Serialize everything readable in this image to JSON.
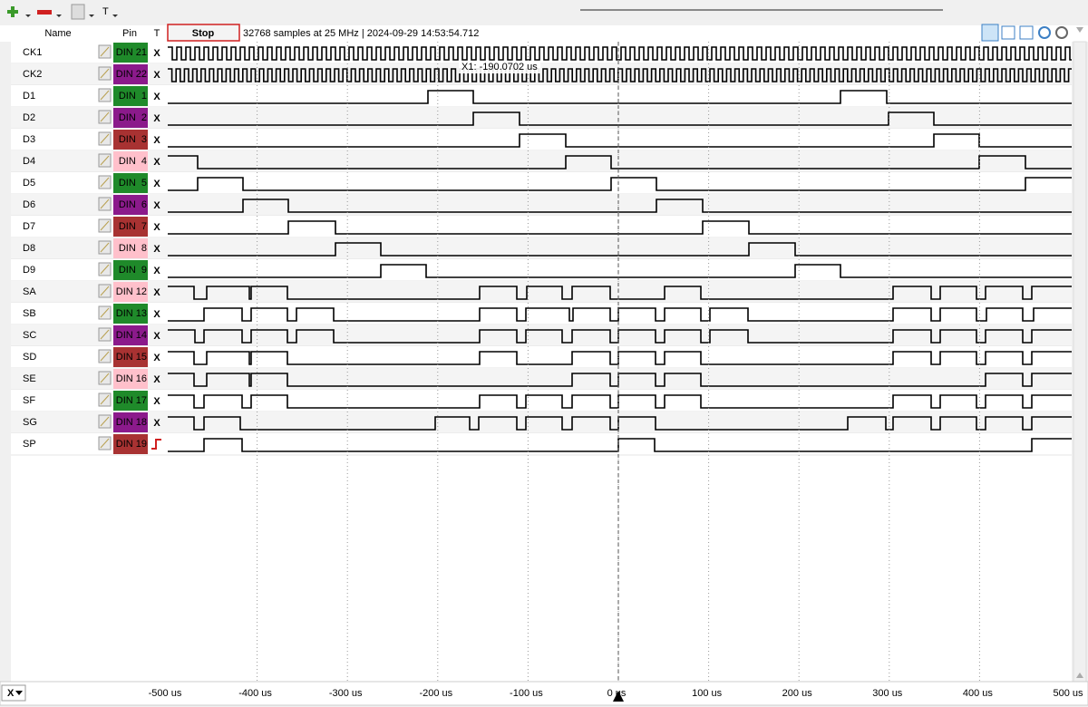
{
  "toolbar": {
    "text_tool": "T"
  },
  "header": {
    "name": "Name",
    "pin": "Pin",
    "trigger": "T",
    "button": "Stop",
    "status": "32768 samples at 25 MHz | 2024-09-29 14:53:54.712"
  },
  "cursor": {
    "label": "X1: -190.0702 us"
  },
  "rows": [
    {
      "name": "CK1",
      "pin": "DIN 21",
      "trigger": "X"
    },
    {
      "name": "CK2",
      "pin": "DIN 22",
      "trigger": "X"
    },
    {
      "name": "D1",
      "pin": "DIN  1",
      "trigger": "X"
    },
    {
      "name": "D2",
      "pin": "DIN  2",
      "trigger": "X"
    },
    {
      "name": "D3",
      "pin": "DIN  3",
      "trigger": "X"
    },
    {
      "name": "D4",
      "pin": "DIN  4",
      "trigger": "X"
    },
    {
      "name": "D5",
      "pin": "DIN  5",
      "trigger": "X"
    },
    {
      "name": "D6",
      "pin": "DIN  6",
      "trigger": "X"
    },
    {
      "name": "D7",
      "pin": "DIN  7",
      "trigger": "X"
    },
    {
      "name": "D8",
      "pin": "DIN  8",
      "trigger": "X"
    },
    {
      "name": "D9",
      "pin": "DIN  9",
      "trigger": "X"
    },
    {
      "name": "SA",
      "pin": "DIN 12",
      "trigger": "X"
    },
    {
      "name": "SB",
      "pin": "DIN 13",
      "trigger": "X"
    },
    {
      "name": "SC",
      "pin": "DIN 14",
      "trigger": "X"
    },
    {
      "name": "SD",
      "pin": "DIN 15",
      "trigger": "X"
    },
    {
      "name": "SE",
      "pin": "DIN 16",
      "trigger": "X"
    },
    {
      "name": "SF",
      "pin": "DIN 17",
      "trigger": "X"
    },
    {
      "name": "SG",
      "pin": "DIN 18",
      "trigger": "X"
    },
    {
      "name": "SP",
      "pin": "DIN 19"
    }
  ],
  "axis": {
    "labels": [
      "-500 us",
      "-400 us",
      "-300 us",
      "-200 us",
      "-100 us",
      "0 us",
      "100 us",
      "200 us",
      "300 us",
      "400 us",
      "500 us"
    ]
  },
  "footer": {
    "selector": "X"
  }
}
